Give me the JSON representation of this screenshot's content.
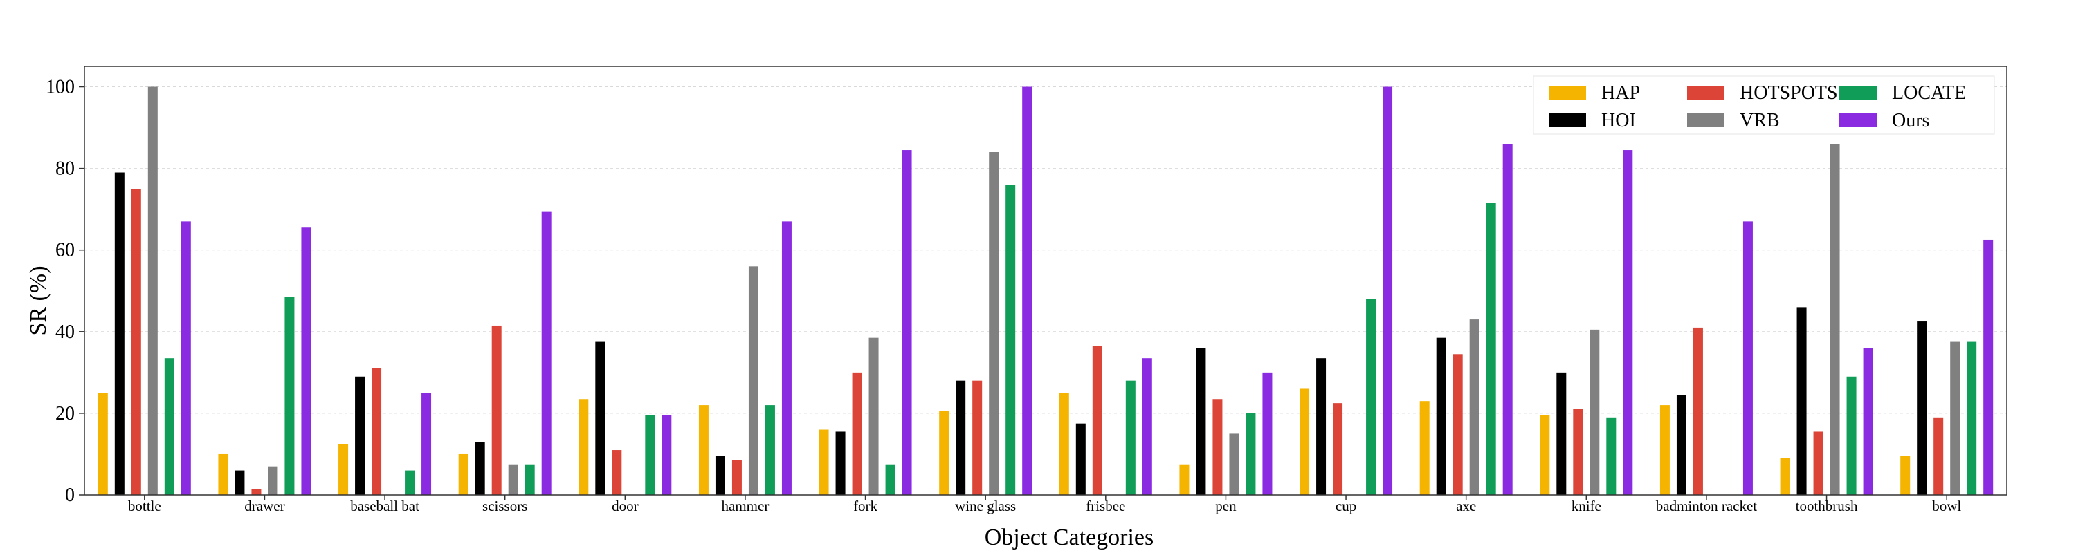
{
  "chart_data": {
    "type": "bar",
    "xlabel": "Object Categories",
    "ylabel": "SR (%)",
    "ylim": [
      0,
      105
    ],
    "yticks": [
      "0",
      "20",
      "40",
      "60",
      "80",
      "100"
    ],
    "grid": "horizontal dashed",
    "legend_position": "top-right",
    "categories": [
      "bottle",
      "drawer",
      "baseball bat",
      "scissors",
      "door",
      "hammer",
      "fork",
      "wine glass",
      "frisbee",
      "pen",
      "cup",
      "axe",
      "knife",
      "badminton racket",
      "toothbrush",
      "bowl"
    ],
    "series": [
      {
        "name": "HAP",
        "color": "#F4B400",
        "values": [
          25,
          10,
          12.5,
          10,
          23.5,
          22,
          16,
          20.5,
          25,
          7.5,
          26,
          23,
          19.5,
          22,
          9,
          9.5
        ]
      },
      {
        "name": "HOI",
        "color": "#000000",
        "values": [
          79,
          6,
          29,
          13,
          37.5,
          9.5,
          15.5,
          28,
          17.5,
          36,
          33.5,
          38.5,
          30,
          24.5,
          46,
          42.5
        ]
      },
      {
        "name": "HOTSPOTS",
        "color": "#DB4437",
        "values": [
          75,
          1.5,
          31,
          41.5,
          11,
          8.5,
          30,
          28,
          36.5,
          23.5,
          22.5,
          34.5,
          21,
          41,
          15.5,
          19
        ]
      },
      {
        "name": "VRB",
        "color": "#808080",
        "values": [
          100,
          7,
          0,
          7.5,
          0,
          56,
          38.5,
          84,
          0,
          15,
          0,
          43,
          40.5,
          0,
          86,
          37.5
        ]
      },
      {
        "name": "LOCATE",
        "color": "#0F9D58",
        "values": [
          33.5,
          48.5,
          6,
          7.5,
          19.5,
          22,
          7.5,
          76,
          28,
          20,
          48,
          71.5,
          19,
          0,
          29,
          37.5
        ]
      },
      {
        "name": "Ours",
        "color": "#8A2BE2",
        "values": [
          67,
          65.5,
          25,
          69.5,
          19.5,
          67,
          84.5,
          100,
          33.5,
          30,
          100,
          86,
          84.5,
          67,
          36,
          62.5
        ]
      }
    ]
  }
}
